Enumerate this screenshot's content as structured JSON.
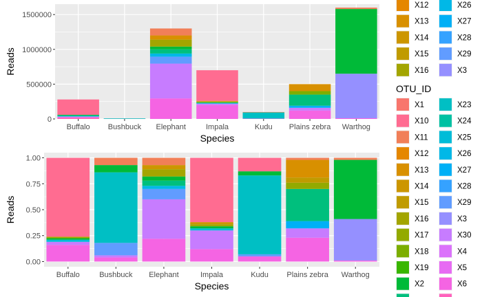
{
  "palette": {
    "X1": "#F8766D",
    "X10": "#FF6C91",
    "X11": "#F17F58",
    "X12": "#E58700",
    "X13": "#D89000",
    "X14": "#CC9600",
    "X15": "#C09B00",
    "X16": "#A3A500",
    "X17": "#93AA00",
    "X18": "#7CAE00",
    "X19": "#39B600",
    "X2": "#00BA38",
    "X20": "#00BF7D",
    "X23": "#00BFC4",
    "X24": "#00C1A3",
    "X25": "#00BCD8",
    "X26": "#00B8E7",
    "X27": "#00B0F6",
    "X28": "#35A2FF",
    "X29": "#619CFF",
    "X3": "#9590FF",
    "X30": "#C77CFF",
    "X4": "#DB72FB",
    "X5": "#E76BF3",
    "X6": "#F564E3",
    "X7": "#FF62BC"
  },
  "chart_data": [
    {
      "type": "bar",
      "stacked": true,
      "categories": [
        "Buffalo",
        "Bushbuck",
        "Elephant",
        "Impala",
        "Kudu",
        "Plains zebra",
        "Warthog"
      ],
      "xlabel": "Species",
      "ylabel": "Reads",
      "ylim": [
        0,
        1650000
      ],
      "yticks": [
        0,
        500000,
        1000000,
        1500000
      ],
      "ytick_labels": [
        "0",
        "500000",
        "1000000",
        "1500000"
      ],
      "grid": true,
      "stacks": [
        [
          {
            "otu": "X7",
            "value": 22000
          },
          {
            "otu": "X30",
            "value": 12000
          },
          {
            "otu": "X23",
            "value": 14000
          },
          {
            "otu": "X2",
            "value": 12000
          },
          {
            "otu": "X10",
            "value": 220000
          }
        ],
        [
          {
            "otu": "X23",
            "value": 8000
          },
          {
            "otu": "X10",
            "value": 1000
          }
        ],
        [
          {
            "otu": "X6",
            "value": 295000
          },
          {
            "otu": "X30",
            "value": 500000
          },
          {
            "otu": "X29",
            "value": 100000
          },
          {
            "otu": "X26",
            "value": 45000
          },
          {
            "otu": "X20",
            "value": 60000
          },
          {
            "otu": "X2",
            "value": 40000
          },
          {
            "otu": "X16",
            "value": 100000
          },
          {
            "otu": "X13",
            "value": 60000
          },
          {
            "otu": "X11",
            "value": 100000
          }
        ],
        [
          {
            "otu": "X6",
            "value": 200000
          },
          {
            "otu": "X30",
            "value": 20000
          },
          {
            "otu": "X25",
            "value": 10000
          },
          {
            "otu": "X2",
            "value": 10000
          },
          {
            "otu": "X16",
            "value": 10000
          },
          {
            "otu": "X14",
            "value": 10000
          },
          {
            "otu": "X10",
            "value": 440000
          }
        ],
        [
          {
            "otu": "X6",
            "value": 5000
          },
          {
            "otu": "X23",
            "value": 85000
          },
          {
            "otu": "X2",
            "value": 5000
          },
          {
            "otu": "X10",
            "value": 5000
          }
        ],
        [
          {
            "otu": "X6",
            "value": 120000
          },
          {
            "otu": "X30",
            "value": 40000
          },
          {
            "otu": "X27",
            "value": 30000
          },
          {
            "otu": "X20",
            "value": 160000
          },
          {
            "otu": "X18",
            "value": 50000
          },
          {
            "otu": "X13",
            "value": 100000
          }
        ],
        [
          {
            "otu": "X6",
            "value": 10000
          },
          {
            "otu": "X3",
            "value": 640000
          },
          {
            "otu": "X2",
            "value": 930000
          },
          {
            "otu": "X11",
            "value": 20000
          }
        ]
      ]
    },
    {
      "type": "bar",
      "stacked": true,
      "categories": [
        "Buffalo",
        "Bushbuck",
        "Elephant",
        "Impala",
        "Kudu",
        "Plains zebra",
        "Warthog"
      ],
      "xlabel": "Species",
      "ylabel": "Reads",
      "ylim": [
        -0.05,
        1.05
      ],
      "yticks": [
        0,
        0.25,
        0.5,
        0.75,
        1
      ],
      "ytick_labels": [
        "0.00",
        "0.25",
        "0.50",
        "0.75",
        "1.00"
      ],
      "grid": true,
      "stacks": [
        [
          {
            "otu": "X6",
            "value": 0.16
          },
          {
            "otu": "X30",
            "value": 0.03
          },
          {
            "otu": "X25",
            "value": 0.02
          },
          {
            "otu": "X2",
            "value": 0.015
          },
          {
            "otu": "X16",
            "value": 0.015
          },
          {
            "otu": "X10",
            "value": 0.76
          }
        ],
        [
          {
            "otu": "X6",
            "value": 0.04
          },
          {
            "otu": "X30",
            "value": 0.02
          },
          {
            "otu": "X29",
            "value": 0.12
          },
          {
            "otu": "X23",
            "value": 0.68
          },
          {
            "otu": "X2",
            "value": 0.07
          },
          {
            "otu": "X11",
            "value": 0.07
          }
        ],
        [
          {
            "otu": "X6",
            "value": 0.22
          },
          {
            "otu": "X30",
            "value": 0.38
          },
          {
            "otu": "X29",
            "value": 0.1
          },
          {
            "otu": "X26",
            "value": 0.03
          },
          {
            "otu": "X20",
            "value": 0.05
          },
          {
            "otu": "X2",
            "value": 0.04
          },
          {
            "otu": "X16",
            "value": 0.07
          },
          {
            "otu": "X14",
            "value": 0.04
          },
          {
            "otu": "X11",
            "value": 0.07
          }
        ],
        [
          {
            "otu": "X6",
            "value": 0.12
          },
          {
            "otu": "X30",
            "value": 0.18
          },
          {
            "otu": "X25",
            "value": 0.02
          },
          {
            "otu": "X2",
            "value": 0.02
          },
          {
            "otu": "X16",
            "value": 0.02
          },
          {
            "otu": "X14",
            "value": 0.02
          },
          {
            "otu": "X10",
            "value": 0.62
          }
        ],
        [
          {
            "otu": "X6",
            "value": 0.05
          },
          {
            "otu": "X29",
            "value": 0.02
          },
          {
            "otu": "X23",
            "value": 0.76
          },
          {
            "otu": "X2",
            "value": 0.04
          },
          {
            "otu": "X10",
            "value": 0.13
          }
        ],
        [
          {
            "otu": "X6",
            "value": 0.23
          },
          {
            "otu": "X30",
            "value": 0.09
          },
          {
            "otu": "X27",
            "value": 0.07
          },
          {
            "otu": "X20",
            "value": 0.31
          },
          {
            "otu": "X17",
            "value": 0.06
          },
          {
            "otu": "X15",
            "value": 0.05
          },
          {
            "otu": "X13",
            "value": 0.17
          },
          {
            "otu": "X11",
            "value": 0.02
          }
        ],
        [
          {
            "otu": "X6",
            "value": 0.01
          },
          {
            "otu": "X3",
            "value": 0.4
          },
          {
            "otu": "X2",
            "value": 0.57
          },
          {
            "otu": "X11",
            "value": 0.02
          }
        ]
      ]
    }
  ],
  "legend_top": {
    "items": [
      {
        "otu": "X12"
      },
      {
        "otu": "X26"
      },
      {
        "otu": "X13"
      },
      {
        "otu": "X27"
      },
      {
        "otu": "X14"
      },
      {
        "otu": "X28"
      },
      {
        "otu": "X15"
      },
      {
        "otu": "X29"
      },
      {
        "otu": "X16"
      },
      {
        "otu": "X3"
      }
    ]
  },
  "legend_bottom": {
    "title": "OTU_ID",
    "items": [
      {
        "otu": "X1"
      },
      {
        "otu": "X23"
      },
      {
        "otu": "X10"
      },
      {
        "otu": "X24"
      },
      {
        "otu": "X11"
      },
      {
        "otu": "X25"
      },
      {
        "otu": "X12"
      },
      {
        "otu": "X26"
      },
      {
        "otu": "X13"
      },
      {
        "otu": "X27"
      },
      {
        "otu": "X14"
      },
      {
        "otu": "X28"
      },
      {
        "otu": "X15"
      },
      {
        "otu": "X29"
      },
      {
        "otu": "X16"
      },
      {
        "otu": "X3"
      },
      {
        "otu": "X17"
      },
      {
        "otu": "X30"
      },
      {
        "otu": "X18"
      },
      {
        "otu": "X4"
      },
      {
        "otu": "X19"
      },
      {
        "otu": "X5"
      },
      {
        "otu": "X2"
      },
      {
        "otu": "X6"
      },
      {
        "otu": "X20"
      },
      {
        "otu": "X7"
      }
    ]
  }
}
